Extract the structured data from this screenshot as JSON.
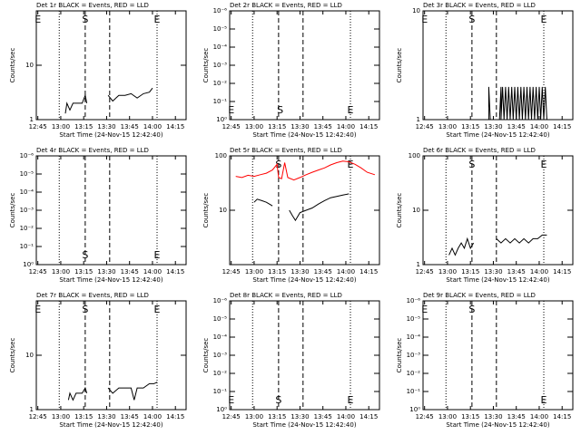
{
  "chart_data": [
    {
      "type": "line",
      "title": "Det 1r BLACK = Events, RED = LLD",
      "x_label": "Start Time (24-Nov-15 12:42:40)",
      "y_label": "Counts/sec",
      "log": true,
      "xlim": [
        "12:44",
        "14:22"
      ],
      "xticks": [
        "12:45",
        "13:00",
        "13:15",
        "13:30",
        "13:45",
        "14:00",
        "14:15"
      ],
      "ylim": [
        1,
        100
      ],
      "yticks": [
        1,
        10
      ],
      "markers": [
        {
          "x": "12:59",
          "style": "dotted"
        },
        {
          "x": "13:16",
          "style": "dashed"
        },
        {
          "x": "13:32",
          "style": "dashed"
        },
        {
          "x": "14:03",
          "style": "dotted"
        }
      ],
      "annotations": [
        {
          "text": "E",
          "x": "12:45",
          "position": "top"
        },
        {
          "text": "S",
          "x": "13:16",
          "position": "top"
        },
        {
          "text": "E",
          "x": "14:03",
          "position": "top"
        }
      ],
      "series": [
        {
          "name": "Events",
          "color": "#000000",
          "x": [
            "13:03",
            "13:04",
            "13:06",
            "13:08",
            "13:10",
            "13:12",
            "13:14",
            "13:16",
            "13:17",
            "13:24",
            "13:31",
            "13:34",
            "13:38",
            "13:42",
            "13:46",
            "13:50",
            "13:54",
            "13:58",
            "14:00"
          ],
          "values": [
            1.3,
            2,
            1.5,
            2,
            2,
            2,
            2,
            2.8,
            2,
            null,
            2.8,
            2.2,
            2.8,
            2.8,
            3,
            2.5,
            3,
            3.2,
            3.8
          ]
        }
      ]
    },
    {
      "type": "line",
      "title": "Det 2r BLACK = Events, RED = LLD",
      "x_label": "Start Time (24-Nov-15 12:42:40)",
      "y_label": "Counts/sec",
      "log": true,
      "xlim": [
        "12:44",
        "14:22"
      ],
      "xticks": [
        "12:45",
        "13:00",
        "13:15",
        "13:30",
        "13:45",
        "14:00",
        "14:15"
      ],
      "ylim": [
        1,
        1e-06
      ],
      "yticks": [
        {
          "value": 1,
          "label": "10⁰"
        },
        {
          "value": 0.1,
          "label": "10⁻¹"
        },
        {
          "value": 0.01,
          "label": "10⁻²"
        },
        {
          "value": 0.001,
          "label": "10⁻³"
        },
        {
          "value": 0.0001,
          "label": "10⁻⁴"
        },
        {
          "value": 1e-05,
          "label": "10⁻⁵"
        },
        {
          "value": 1e-06,
          "label": "10⁻⁶"
        }
      ],
      "markers": [
        {
          "x": "12:59",
          "style": "dotted"
        },
        {
          "x": "13:16",
          "style": "dashed"
        },
        {
          "x": "13:32",
          "style": "dashed"
        },
        {
          "x": "14:03",
          "style": "dotted"
        }
      ],
      "annotations": [
        {
          "text": "E",
          "x": "12:45",
          "position": "bottom"
        },
        {
          "text": "S",
          "x": "13:17",
          "position": "bottom"
        },
        {
          "text": "E",
          "x": "14:03",
          "position": "bottom"
        }
      ],
      "series": []
    },
    {
      "type": "line",
      "title": "Det 3r BLACK = Events, RED = LLD",
      "x_label": "Start Time (24-Nov-15 12:42:40)",
      "y_label": "Counts/sec",
      "log": true,
      "xlim": [
        "12:44",
        "14:22"
      ],
      "xticks": [
        "12:45",
        "13:00",
        "13:15",
        "13:30",
        "13:45",
        "14:00",
        "14:15"
      ],
      "ylim": [
        1,
        10
      ],
      "yticks": [
        1,
        10
      ],
      "markers": [
        {
          "x": "12:59",
          "style": "dotted"
        },
        {
          "x": "13:16",
          "style": "dashed"
        },
        {
          "x": "13:32",
          "style": "dashed"
        },
        {
          "x": "14:03",
          "style": "dotted"
        }
      ],
      "annotations": [
        {
          "text": "E",
          "x": "12:45",
          "position": "top"
        },
        {
          "text": "S",
          "x": "13:16",
          "position": "top"
        },
        {
          "text": "E",
          "x": "14:03",
          "position": "top"
        }
      ],
      "series": [
        {
          "name": "Events",
          "color": "#000000",
          "x": [
            "13:27",
            "13:27",
            "13:28",
            "13:34",
            "13:35",
            "13:35",
            "13:36",
            "13:37",
            "13:38",
            "13:39",
            "13:40",
            "13:41",
            "13:42",
            "13:43",
            "13:44",
            "13:45",
            "13:46",
            "13:47",
            "13:48",
            "13:49",
            "13:50",
            "13:51",
            "13:52",
            "13:53",
            "13:54",
            "13:55",
            "13:56",
            "13:57",
            "13:58",
            "13:59",
            "14:00",
            "14:01",
            "14:02",
            "14:03",
            "14:04",
            "14:05"
          ],
          "values": [
            1,
            2,
            1,
            1,
            2,
            1,
            2,
            1,
            2,
            1,
            2,
            1,
            2,
            1,
            2,
            1,
            2,
            1,
            2,
            1,
            2,
            1,
            2,
            1,
            2,
            1,
            2,
            1,
            2,
            1,
            2,
            1,
            2,
            1,
            2,
            1
          ]
        }
      ]
    },
    {
      "type": "line",
      "title": "Det 4r BLACK = Events, RED = LLD",
      "x_label": "Start Time (24-Nov-15 12:42:40)",
      "y_label": "Counts/sec",
      "log": true,
      "xlim": [
        "12:44",
        "14:22"
      ],
      "xticks": [
        "12:45",
        "13:00",
        "13:15",
        "13:30",
        "13:45",
        "14:00",
        "14:15"
      ],
      "ylim": [
        1,
        1e-06
      ],
      "yticks": [
        {
          "value": 1,
          "label": "10⁰"
        },
        {
          "value": 0.1,
          "label": "10⁻¹"
        },
        {
          "value": 0.01,
          "label": "10⁻²"
        },
        {
          "value": 0.001,
          "label": "10⁻³"
        },
        {
          "value": 0.0001,
          "label": "10⁻⁴"
        },
        {
          "value": 1e-05,
          "label": "10⁻⁵"
        },
        {
          "value": 1e-06,
          "label": "10⁻⁶"
        }
      ],
      "markers": [
        {
          "x": "12:59",
          "style": "dotted"
        },
        {
          "x": "13:16",
          "style": "dashed"
        },
        {
          "x": "13:32",
          "style": "dashed"
        },
        {
          "x": "14:03",
          "style": "dotted"
        }
      ],
      "annotations": [
        {
          "text": "S",
          "x": "13:16",
          "position": "bottom"
        },
        {
          "text": "E",
          "x": "14:03",
          "position": "bottom"
        }
      ],
      "series": []
    },
    {
      "type": "line",
      "title": "Det 5r BLACK = Events, RED = LLD",
      "x_label": "Start Time (24-Nov-15 12:42:40)",
      "y_label": "Counts/sec",
      "log": true,
      "xlim": [
        "12:44",
        "14:22"
      ],
      "xticks": [
        "12:45",
        "13:00",
        "13:15",
        "13:30",
        "13:45",
        "14:00",
        "14:15"
      ],
      "ylim": [
        1,
        100
      ],
      "yticks": [
        10,
        100
      ],
      "markers": [
        {
          "x": "12:59",
          "style": "dotted"
        },
        {
          "x": "13:16",
          "style": "dashed"
        },
        {
          "x": "13:32",
          "style": "dashed"
        },
        {
          "x": "14:03",
          "style": "dotted"
        }
      ],
      "annotations": [
        {
          "text": "S",
          "x": "13:16",
          "position": "top"
        },
        {
          "text": "E",
          "x": "14:03",
          "position": "top"
        }
      ],
      "series": [
        {
          "name": "LLD",
          "color": "#ff0000",
          "x": [
            "12:48",
            "12:52",
            "12:56",
            "13:00",
            "13:04",
            "13:08",
            "13:12",
            "13:15",
            "13:16",
            "13:18",
            "13:20",
            "13:22",
            "13:26",
            "13:30",
            "13:34",
            "13:38",
            "13:42",
            "13:46",
            "13:50",
            "13:54",
            "13:58",
            "14:02",
            "14:06",
            "14:10",
            "14:14",
            "14:19"
          ],
          "values": [
            42,
            40,
            44,
            42,
            45,
            48,
            55,
            70,
            40,
            38,
            75,
            40,
            36,
            40,
            45,
            50,
            55,
            60,
            68,
            75,
            80,
            78,
            70,
            60,
            50,
            45
          ]
        },
        {
          "name": "Events",
          "color": "#000000",
          "x": [
            "13:00",
            "13:02",
            "13:05",
            "13:08",
            "13:10",
            "13:12",
            "13:17",
            "13:23",
            "13:25",
            "13:27",
            "13:30",
            "13:34",
            "13:38",
            "13:42",
            "13:46",
            "13:50",
            "13:54",
            "13:58",
            "14:02"
          ],
          "values": [
            14,
            16,
            15,
            14,
            13,
            12,
            null,
            10,
            8,
            6.5,
            9,
            10,
            11,
            13,
            15,
            17,
            18,
            19,
            20
          ]
        }
      ]
    },
    {
      "type": "line",
      "title": "Det 6r BLACK = Events, RED = LLD",
      "x_label": "Start Time (24-Nov-15 12:42:40)",
      "y_label": "Counts/sec",
      "log": true,
      "xlim": [
        "12:44",
        "14:22"
      ],
      "xticks": [
        "12:45",
        "13:00",
        "13:15",
        "13:30",
        "13:45",
        "14:00",
        "14:15"
      ],
      "ylim": [
        1,
        100
      ],
      "yticks": [
        1,
        10,
        100
      ],
      "markers": [
        {
          "x": "12:59",
          "style": "dotted"
        },
        {
          "x": "13:16",
          "style": "dashed"
        },
        {
          "x": "13:32",
          "style": "dashed"
        },
        {
          "x": "14:03",
          "style": "dotted"
        }
      ],
      "annotations": [
        {
          "text": "S",
          "x": "13:16",
          "position": "top"
        },
        {
          "text": "E",
          "x": "14:03",
          "position": "top"
        }
      ],
      "series": [
        {
          "name": "Events",
          "color": "#000000",
          "x": [
            "13:01",
            "13:03",
            "13:05",
            "13:07",
            "13:09",
            "13:11",
            "13:13",
            "13:15",
            "13:17",
            "13:24",
            "13:32",
            "13:35",
            "13:38",
            "13:41",
            "13:44",
            "13:47",
            "13:50",
            "13:53",
            "13:56",
            "13:59",
            "14:02",
            "14:05"
          ],
          "values": [
            1.5,
            2,
            1.5,
            2,
            2.5,
            2,
            3,
            2,
            2.5,
            null,
            3,
            2.5,
            3,
            2.5,
            3,
            2.5,
            3,
            2.5,
            3,
            3,
            3.5,
            3.5
          ]
        }
      ]
    },
    {
      "type": "line",
      "title": "Det 7r BLACK = Events, RED = LLD",
      "x_label": "Start Time (24-Nov-15 12:42:40)",
      "y_label": "Counts/sec",
      "log": true,
      "xlim": [
        "12:44",
        "14:22"
      ],
      "xticks": [
        "12:45",
        "13:00",
        "13:15",
        "13:30",
        "13:45",
        "14:00",
        "14:15"
      ],
      "ylim": [
        1,
        100
      ],
      "yticks": [
        1,
        10
      ],
      "markers": [
        {
          "x": "12:59",
          "style": "dotted"
        },
        {
          "x": "13:16",
          "style": "dashed"
        },
        {
          "x": "13:32",
          "style": "dashed"
        },
        {
          "x": "14:03",
          "style": "dotted"
        }
      ],
      "annotations": [
        {
          "text": "E",
          "x": "12:45",
          "position": "top"
        },
        {
          "text": "S",
          "x": "13:16",
          "position": "top"
        },
        {
          "text": "E",
          "x": "14:03",
          "position": "top"
        }
      ],
      "series": [
        {
          "name": "Events",
          "color": "#000000",
          "x": [
            "13:05",
            "13:06",
            "13:08",
            "13:10",
            "13:12",
            "13:14",
            "13:16",
            "13:17",
            "13:24",
            "13:31",
            "13:34",
            "13:38",
            "13:42",
            "13:46",
            "13:48",
            "13:50",
            "13:54",
            "13:58",
            "14:01",
            "14:03"
          ],
          "values": [
            1.5,
            2,
            1.5,
            2,
            2,
            2,
            2.5,
            2,
            null,
            2.5,
            2,
            2.5,
            2.5,
            2.5,
            1.5,
            2.5,
            2.5,
            3,
            3,
            3.2
          ]
        }
      ]
    },
    {
      "type": "line",
      "title": "Det 8r BLACK = Events, RED = LLD",
      "x_label": "Start Time (24-Nov-15 12:42:40)",
      "y_label": "Counts/sec",
      "log": true,
      "xlim": [
        "12:44",
        "14:22"
      ],
      "xticks": [
        "12:45",
        "13:00",
        "13:15",
        "13:30",
        "13:45",
        "14:00",
        "14:15"
      ],
      "ylim": [
        1,
        1e-06
      ],
      "yticks": [
        {
          "value": 1,
          "label": "10⁰"
        },
        {
          "value": 0.1,
          "label": "10⁻¹"
        },
        {
          "value": 0.01,
          "label": "10⁻²"
        },
        {
          "value": 0.001,
          "label": "10⁻³"
        },
        {
          "value": 0.0001,
          "label": "10⁻⁴"
        },
        {
          "value": 1e-05,
          "label": "10⁻⁵"
        },
        {
          "value": 1e-06,
          "label": "10⁻⁶"
        }
      ],
      "markers": [
        {
          "x": "12:59",
          "style": "dotted"
        },
        {
          "x": "13:16",
          "style": "dashed"
        },
        {
          "x": "13:32",
          "style": "dashed"
        },
        {
          "x": "14:03",
          "style": "dotted"
        }
      ],
      "annotations": [
        {
          "text": "E",
          "x": "12:45",
          "position": "bottom"
        },
        {
          "text": "S",
          "x": "13:16",
          "position": "bottom"
        },
        {
          "text": "E",
          "x": "14:03",
          "position": "bottom"
        }
      ],
      "series": []
    },
    {
      "type": "line",
      "title": "Det 9r BLACK = Events, RED = LLD",
      "x_label": "Start Time (24-Nov-15 12:42:40)",
      "y_label": "Counts/sec",
      "log": true,
      "xlim": [
        "12:44",
        "14:22"
      ],
      "xticks": [
        "12:45",
        "13:00",
        "13:15",
        "13:30",
        "13:45",
        "14:00",
        "14:15"
      ],
      "ylim": [
        1,
        1e-06
      ],
      "yticks": [
        {
          "value": 1,
          "label": "10⁰"
        },
        {
          "value": 0.1,
          "label": "10⁻¹"
        },
        {
          "value": 0.01,
          "label": "10⁻²"
        },
        {
          "value": 0.001,
          "label": "10⁻³"
        },
        {
          "value": 0.0001,
          "label": "10⁻⁴"
        },
        {
          "value": 1e-05,
          "label": "10⁻⁵"
        },
        {
          "value": 1e-06,
          "label": "10⁻⁶"
        }
      ],
      "markers": [
        {
          "x": "12:59",
          "style": "dotted"
        },
        {
          "x": "13:16",
          "style": "dashed"
        },
        {
          "x": "13:32",
          "style": "dashed"
        },
        {
          "x": "14:03",
          "style": "dotted"
        }
      ],
      "annotations": [
        {
          "text": "E",
          "x": "12:45",
          "position": "top"
        },
        {
          "text": "S",
          "x": "13:16",
          "position": "top"
        },
        {
          "text": "E",
          "x": "14:03",
          "position": "bottom"
        }
      ],
      "series": []
    }
  ]
}
